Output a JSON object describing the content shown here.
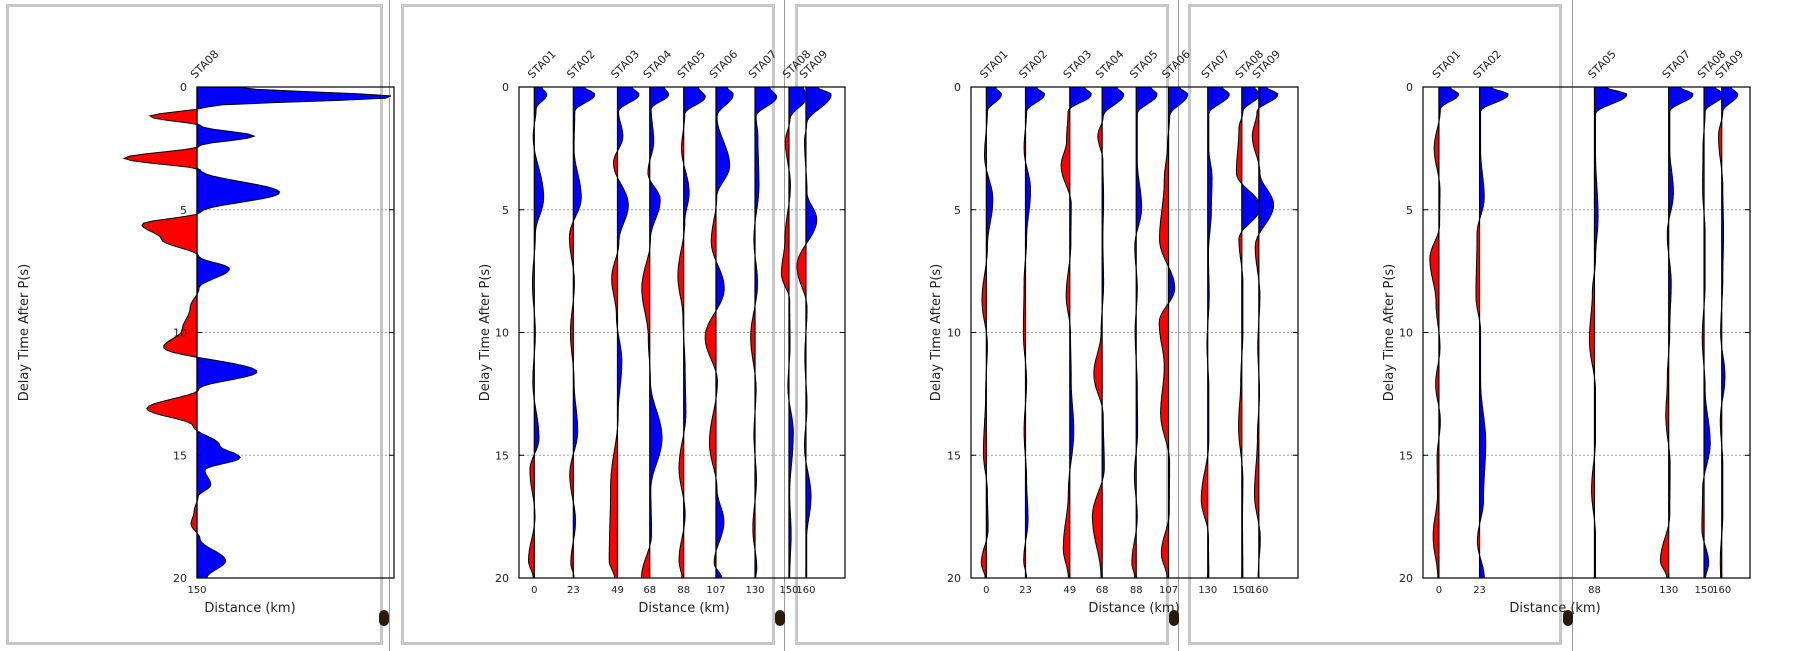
{
  "colors": {
    "positive": "#0000ff",
    "negative": "#ff0000",
    "trace": "#000000",
    "grid": "#a0a0a0",
    "frame": "#c8c8c8"
  },
  "chart_data": [
    {
      "type": "area",
      "ylabel": "Delay Time After P(s)",
      "xlabel": "Distance (km)",
      "ylim": [
        20,
        0
      ],
      "yticks": [
        0,
        5,
        10,
        15,
        20
      ],
      "xticks": [
        150
      ],
      "xlim": [
        0,
        20
      ],
      "grid": "horizontal dotted",
      "traces": [
        {
          "name": "STA08",
          "distance": 150,
          "t": [
            0,
            0.4,
            0.8,
            1.2,
            1.6,
            2.0,
            2.4,
            2.9,
            3.4,
            4.3,
            5.1,
            5.6,
            6.2,
            6.9,
            7.4,
            8.2,
            9.0,
            9.9,
            10.6,
            11.6,
            12.3,
            13.1,
            13.8,
            14.6,
            15.1,
            15.6,
            16.2,
            16.7,
            17.3,
            17.8,
            18.4,
            19.3,
            20.0
          ],
          "amp": [
            4,
            20,
            1,
            -4.8,
            0.5,
            5.8,
            0.3,
            -7.4,
            0.4,
            8.4,
            0.4,
            -5.6,
            -3.6,
            0.2,
            3.3,
            0.2,
            -0.7,
            -1.5,
            -3.4,
            6.1,
            0.2,
            -5.1,
            -0.4,
            2.3,
            4.4,
            0.8,
            1.4,
            0.1,
            -0.3,
            -0.6,
            0.3,
            2.9,
            1
          ]
        }
      ]
    },
    {
      "type": "area",
      "ylabel": "Delay Time After P(s)",
      "xlabel": "Distance (km)",
      "ylim": [
        20,
        0
      ],
      "yticks": [
        0,
        5,
        10,
        15,
        20
      ],
      "xticks": [
        0,
        23,
        49,
        68,
        88,
        107,
        130,
        150,
        160
      ],
      "xlim": [
        -9,
        183
      ],
      "grid": "horizontal dotted",
      "traces": [
        {
          "name": "STA01",
          "distance": 0,
          "t": [
            0,
            0.3,
            0.9,
            2.0,
            4.5,
            6.0,
            8.0,
            10.0,
            12.0,
            14.3,
            15.6,
            17.5,
            19.3,
            20
          ],
          "amp": [
            2,
            3.5,
            0.5,
            -0.3,
            2.6,
            0.3,
            -0.5,
            0.3,
            -0.4,
            1.3,
            -1.2,
            0.2,
            -1.6,
            -0.3
          ]
        },
        {
          "name": "STA02",
          "distance": 23,
          "t": [
            0,
            0.3,
            1.0,
            2.5,
            4.5,
            6.1,
            8.0,
            10.0,
            12.0,
            14.0,
            15.8,
            17.7,
            19.4,
            20
          ],
          "amp": [
            3,
            6,
            0.4,
            0.2,
            2.2,
            -1.1,
            0.3,
            -0.8,
            0.2,
            1.2,
            -1.0,
            0.6,
            -0.7,
            0.2
          ]
        },
        {
          "name": "STA03",
          "distance": 49,
          "t": [
            0,
            0.3,
            1.0,
            2.0,
            3.1,
            4.8,
            6.3,
            7.8,
            9.3,
            11.2,
            13.3,
            16.3,
            19.3,
            20
          ],
          "amp": [
            4,
            6,
            0.3,
            1.5,
            -1.1,
            3.0,
            0.4,
            -1.6,
            -0.3,
            1.2,
            0.2,
            -1.9,
            -2.3,
            -0.8
          ]
        },
        {
          "name": "STA04",
          "distance": 68,
          "t": [
            0,
            0.3,
            0.9,
            2.2,
            3.5,
            4.6,
            6.2,
            8.2,
            10.2,
            12.0,
            14.3,
            16.4,
            18.2,
            20
          ],
          "amp": [
            4,
            5.3,
            0.4,
            1.1,
            -0.5,
            2.9,
            0.2,
            -2.2,
            -0.4,
            0.2,
            3.4,
            0.3,
            0.5,
            -2.3
          ]
        },
        {
          "name": "STA05",
          "distance": 88,
          "t": [
            0,
            0.4,
            1.1,
            2.5,
            4.3,
            5.5,
            7.7,
            9.4,
            11.5,
            13.3,
            15.5,
            17.4,
            19.3,
            20
          ],
          "amp": [
            4,
            6,
            0.3,
            -0.6,
            1.5,
            0.3,
            -1.6,
            -0.2,
            0.4,
            0.6,
            -1.3,
            0.4,
            -1.3,
            -0.5
          ]
        },
        {
          "name": "STA06",
          "distance": 107,
          "t": [
            0,
            0.3,
            1.2,
            3.2,
            4.5,
            6.3,
            8.2,
            10.2,
            12.0,
            14.5,
            16.4,
            17.7,
            19.4,
            20
          ],
          "amp": [
            3,
            4.8,
            0.3,
            3.8,
            0.2,
            -1.3,
            2.3,
            -3.0,
            0.4,
            -1.8,
            0.3,
            2.2,
            -0.5,
            1.6
          ]
        },
        {
          "name": "STA07",
          "distance": 130,
          "t": [
            0,
            0.4,
            1.2,
            2.0,
            4.0,
            6.2,
            8.0,
            10.2,
            12.3,
            14.2,
            16.0,
            18.0,
            19.6,
            20
          ],
          "amp": [
            4,
            6,
            0.3,
            0.8,
            1.1,
            -0.3,
            0.7,
            -1.2,
            0.3,
            -0.3,
            0.4,
            -0.6,
            0.5,
            0.2
          ]
        },
        {
          "name": "STA08",
          "distance": 150,
          "t": [
            0,
            0.4,
            1.3,
            2.2,
            4.0,
            6.2,
            7.6,
            8.7,
            10.5,
            12.2,
            14.1,
            16.6,
            18.2,
            20
          ],
          "amp": [
            4,
            5,
            0.3,
            -1.0,
            0.4,
            -1.1,
            -2.1,
            0.2,
            0.3,
            -0.3,
            1.2,
            0.2,
            0.6,
            0.2
          ]
        },
        {
          "name": "STA09",
          "distance": 160,
          "t": [
            0,
            0.3,
            1.5,
            2.2,
            4.3,
            5.4,
            7.3,
            9.0,
            11.0,
            13.0,
            14.6,
            16.7,
            18.4,
            20
          ],
          "amp": [
            3,
            7,
            0.2,
            -0.4,
            0.3,
            3.0,
            -2.5,
            0.3,
            -0.3,
            0.3,
            -0.4,
            1.4,
            0.2,
            0.2
          ]
        }
      ]
    },
    {
      "type": "area",
      "ylabel": "Delay Time After P(s)",
      "xlabel": "Distance (km)",
      "ylim": [
        20,
        0
      ],
      "yticks": [
        0,
        5,
        10,
        15,
        20
      ],
      "xticks": [
        0,
        23,
        49,
        68,
        88,
        107,
        130,
        150,
        160
      ],
      "xlim": [
        -9,
        183
      ],
      "grid": "horizontal dotted",
      "traces": [
        {
          "name": "STA01",
          "distance": 0,
          "t": [
            0,
            0.3,
            1.0,
            2.8,
            4.6,
            6.5,
            8.7,
            10.5,
            12.5,
            14.9,
            16.5,
            18.0,
            19.4,
            20
          ],
          "amp": [
            2.5,
            4.2,
            0.3,
            -0.5,
            1.8,
            0.3,
            -1.2,
            0.3,
            -0.2,
            -0.8,
            0.3,
            0.5,
            -1.4,
            -0.3
          ]
        },
        {
          "name": "STA02",
          "distance": 23,
          "t": [
            0,
            0.3,
            1.0,
            2.5,
            4.2,
            6.2,
            8.0,
            10.0,
            12.0,
            14.0,
            16.0,
            17.6,
            19.3,
            20
          ],
          "amp": [
            3,
            5.3,
            0.3,
            -0.4,
            1.4,
            0.3,
            -0.4,
            -0.6,
            0.3,
            -0.4,
            0.3,
            0.7,
            -0.5,
            0.3
          ]
        },
        {
          "name": "STA03",
          "distance": 49,
          "t": [
            0,
            0.3,
            1.0,
            2.2,
            3.2,
            4.8,
            6.4,
            8.5,
            10.0,
            12.0,
            14.0,
            16.5,
            18.8,
            20
          ],
          "amp": [
            4,
            6,
            -0.5,
            -0.9,
            -2.4,
            0.4,
            0.3,
            -1.0,
            0.2,
            0.4,
            1.1,
            -0.4,
            -1.8,
            -0.4
          ]
        },
        {
          "name": "STA04",
          "distance": 68,
          "t": [
            0,
            0.3,
            1.2,
            2.0,
            3.0,
            4.6,
            6.2,
            8.0,
            10.0,
            11.7,
            13.4,
            15.5,
            17.5,
            20
          ],
          "amp": [
            4,
            6,
            0.3,
            -1.2,
            0.2,
            0.4,
            0.2,
            0.4,
            -0.3,
            -2.3,
            0.3,
            0.6,
            -2.7,
            -0.3
          ]
        },
        {
          "name": "STA05",
          "distance": 88,
          "t": [
            0,
            0.3,
            1.1,
            3.0,
            4.9,
            6.5,
            8.2,
            10.0,
            12.3,
            14.0,
            15.8,
            17.5,
            19.4,
            20
          ],
          "amp": [
            4,
            5.8,
            0.3,
            0.3,
            1.5,
            -0.4,
            0.3,
            -0.3,
            0.3,
            0.4,
            -0.5,
            0.3,
            -1.2,
            -0.4
          ]
        },
        {
          "name": "STA06",
          "distance": 107,
          "t": [
            0,
            0.3,
            1.2,
            2.4,
            3.8,
            6.2,
            8.2,
            9.6,
            11.4,
            13.3,
            15.3,
            17.3,
            19.0,
            20
          ],
          "amp": [
            3,
            5.3,
            0.3,
            -0.3,
            -1.2,
            -2.5,
            1.7,
            -2.6,
            -1.2,
            -2.2,
            0.3,
            0.2,
            -2.0,
            -0.4
          ]
        },
        {
          "name": "STA07",
          "distance": 130,
          "t": [
            0,
            0.3,
            1.1,
            2.5,
            3.7,
            5.0,
            6.8,
            8.5,
            10.5,
            12.3,
            14.4,
            16.8,
            18.3,
            20
          ],
          "amp": [
            4,
            6,
            0.3,
            0.3,
            1.2,
            1.0,
            0.2,
            0.4,
            -0.2,
            0.3,
            0.3,
            -1.8,
            0.2,
            0.3
          ]
        },
        {
          "name": "STA08",
          "distance": 150,
          "t": [
            0,
            0.3,
            1.0,
            1.7,
            3.5,
            4.9,
            6.2,
            8.0,
            10.0,
            12.0,
            13.8,
            16.0,
            17.6,
            20
          ],
          "amp": [
            3.5,
            5,
            0.3,
            -0.8,
            -1.5,
            5.2,
            -0.8,
            0.3,
            0.3,
            -0.3,
            -0.9,
            0.3,
            0.2,
            0.3
          ]
        },
        {
          "name": "STA09",
          "distance": 160,
          "t": [
            0,
            0.3,
            1.0,
            2.0,
            3.5,
            4.8,
            6.5,
            8.5,
            10.6,
            12.4,
            14.3,
            16.6,
            18.4,
            20
          ],
          "amp": [
            2,
            5.3,
            -0.5,
            -1.8,
            0.3,
            4.1,
            -1.0,
            0.3,
            -0.3,
            0.2,
            -0.4,
            -1.2,
            0.4,
            -0.2
          ]
        }
      ]
    },
    {
      "type": "area",
      "ylabel": "Delay Time After P(s)",
      "xlabel": "Distance (km)",
      "ylim": [
        20,
        0
      ],
      "yticks": [
        0,
        5,
        10,
        15,
        20
      ],
      "xticks": [
        0,
        23,
        88,
        130,
        150,
        160
      ],
      "xlim": [
        -9,
        176
      ],
      "grid": "horizontal dotted",
      "traces": [
        {
          "name": "STA01",
          "distance": 0,
          "t": [
            0,
            0.3,
            0.9,
            2.5,
            4.2,
            5.6,
            7.0,
            8.8,
            10.6,
            12.1,
            13.6,
            15.1,
            16.6,
            18.3,
            20
          ],
          "amp": [
            3,
            5.5,
            0.4,
            -1.3,
            0.3,
            0.2,
            -2.5,
            -0.8,
            0.3,
            -0.9,
            0.4,
            -0.5,
            -0.4,
            -1.6,
            -0.3
          ]
        },
        {
          "name": "STA02",
          "distance": 23,
          "t": [
            0,
            0.3,
            1.0,
            2.6,
            4.5,
            6.0,
            8.5,
            10.0,
            12.0,
            14.5,
            16.8,
            18.5,
            20
          ],
          "amp": [
            3,
            8,
            0.3,
            0.3,
            1.3,
            -0.7,
            -1.0,
            0.3,
            0.3,
            1.7,
            1.1,
            -0.6,
            1.3
          ]
        },
        {
          "name": "STA05",
          "distance": 88,
          "t": [
            0,
            0.3,
            1.1,
            2.7,
            5.3,
            7.0,
            8.4,
            10.3,
            12.4,
            14.3,
            16.4,
            18.3,
            20
          ],
          "amp": [
            3,
            9,
            0.3,
            0.3,
            1.0,
            0.3,
            -0.6,
            -1.4,
            0.3,
            0.3,
            -0.8,
            0.3,
            0.3
          ]
        },
        {
          "name": "STA07",
          "distance": 130,
          "t": [
            0,
            0.3,
            1.0,
            2.5,
            4.3,
            6.0,
            8.0,
            9.9,
            12.0,
            13.4,
            15.4,
            17.4,
            19.3,
            20
          ],
          "amp": [
            3,
            6.8,
            0.3,
            0.3,
            1.3,
            -0.4,
            0.7,
            0.3,
            -0.4,
            -0.8,
            0.4,
            0.3,
            -2.3,
            -0.5
          ]
        },
        {
          "name": "STA08",
          "distance": 150,
          "t": [
            0,
            0.3,
            1.0,
            2.5,
            4.1,
            6.0,
            8.0,
            10.2,
            12.3,
            14.5,
            16.4,
            18.0,
            19.4,
            20
          ],
          "amp": [
            3,
            5.5,
            0.3,
            -0.3,
            -0.4,
            0.3,
            0.3,
            -0.5,
            0.3,
            1.7,
            -0.4,
            -0.6,
            1.3,
            0.4
          ]
        },
        {
          "name": "STA09",
          "distance": 160,
          "t": [
            0,
            0.3,
            1.0,
            2.0,
            4.1,
            6.0,
            7.8,
            10.0,
            11.8,
            13.6,
            15.4,
            17.4,
            19.3,
            20
          ],
          "amp": [
            2.5,
            4.5,
            0.3,
            -0.9,
            0.3,
            0.5,
            0.3,
            -0.3,
            0.9,
            -0.4,
            0.3,
            0.3,
            -0.4,
            -0.3
          ]
        }
      ]
    }
  ]
}
